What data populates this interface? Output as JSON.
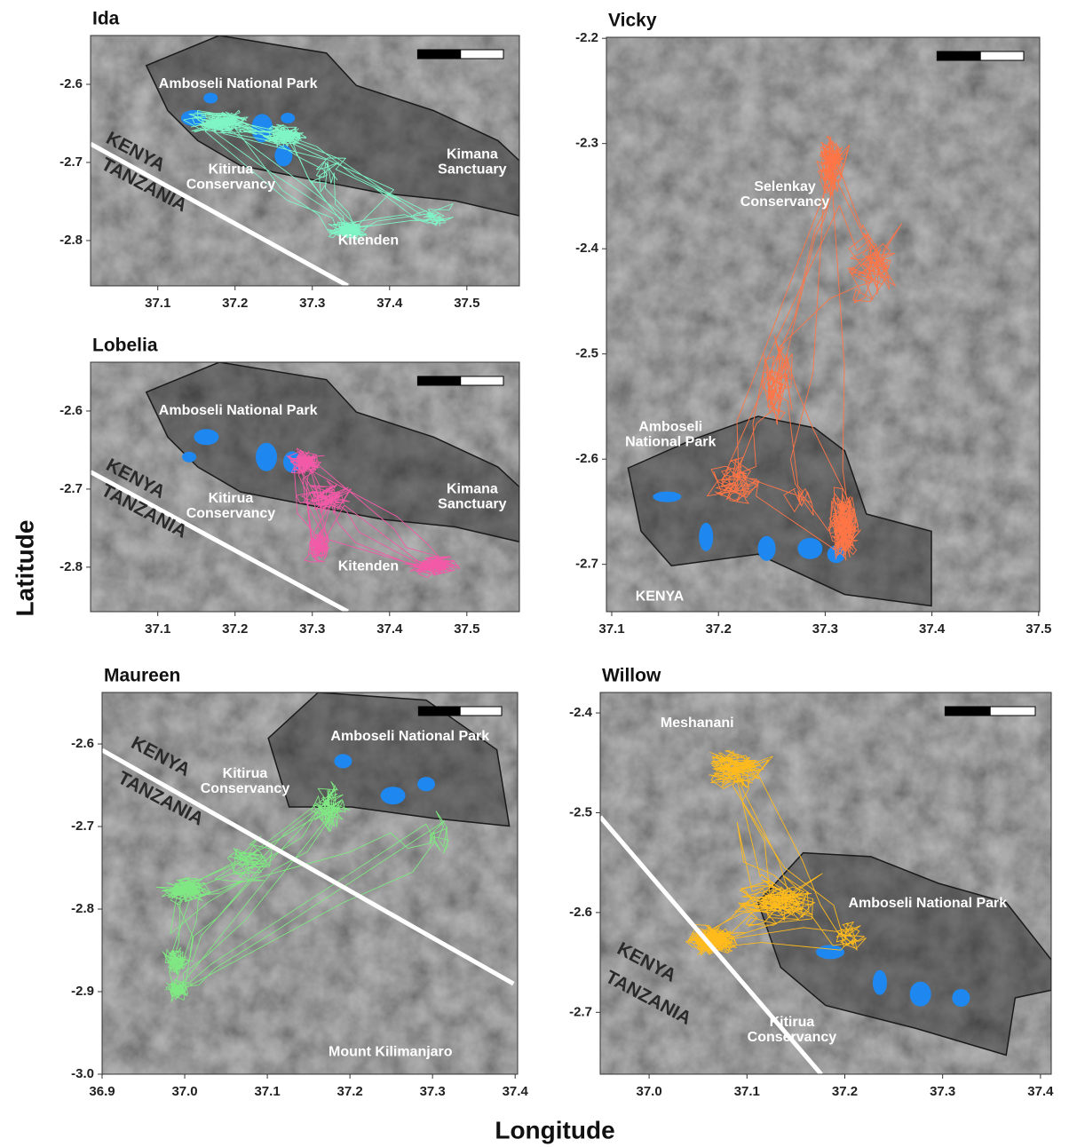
{
  "x_label": "Longitude",
  "y_label": "Latitude",
  "chart_data": [
    {
      "type": "map",
      "title": "Ida",
      "color": "#7ff5c6",
      "xlim": [
        37.013,
        37.568
      ],
      "ylim": [
        -2.858,
        -2.5375
      ],
      "xticks": [
        37.1,
        37.2,
        37.3,
        37.4,
        37.5
      ],
      "yticks": [
        -2.8,
        -2.7,
        -2.6
      ],
      "labels": [
        [
          "Amboseli National Park"
        ],
        [
          "Kitirua",
          "Conservancy"
        ],
        [
          "Kimana",
          "Sanctuary"
        ],
        [
          "Kitenden"
        ],
        [
          "KENYA"
        ],
        [
          "TANZANIA"
        ]
      ]
    },
    {
      "type": "map",
      "title": "Lobelia",
      "color": "#f25aa8",
      "xlim": [
        37.013,
        37.568
      ],
      "ylim": [
        -2.857,
        -2.5375
      ],
      "xticks": [
        37.1,
        37.2,
        37.3,
        37.4,
        37.5
      ],
      "yticks": [
        -2.8,
        -2.7,
        -2.6
      ],
      "labels": [
        [
          "Amboseli National Park"
        ],
        [
          "Kitirua",
          "Conservancy"
        ],
        [
          "Kimana",
          "Sanctuary"
        ],
        [
          "Kitenden"
        ],
        [
          "KENYA"
        ],
        [
          "TANZANIA"
        ]
      ]
    },
    {
      "type": "map",
      "title": "Vicky",
      "color": "#ff7546",
      "xlim": [
        37.095,
        37.501
      ],
      "ylim": [
        -2.745,
        -2.199
      ],
      "xticks": [
        37.1,
        37.2,
        37.3,
        37.4,
        37.5
      ],
      "yticks": [
        -2.7,
        -2.6,
        -2.5,
        -2.4,
        -2.3,
        -2.2
      ],
      "labels": [
        [
          "Selenkay",
          "Conservancy"
        ],
        [
          "Amboseli",
          "National Park"
        ],
        [
          "KENYA"
        ]
      ]
    },
    {
      "type": "map",
      "title": "Maureen",
      "color": "#7fe882",
      "xlim": [
        36.9,
        37.403
      ],
      "ylim": [
        -3.0,
        -2.5376
      ],
      "xticks": [
        36.9,
        {
          "value": 37,
          "label": "37.0"
        },
        37.1,
        37.2,
        37.3,
        37.4
      ],
      "yticks": [
        {
          "value": -3,
          "label": "-3.0"
        },
        -2.9,
        -2.8,
        -2.7,
        -2.6
      ],
      "labels": [
        [
          "Amboseli National Park"
        ],
        [
          "Kitirua",
          "Conservancy"
        ],
        [
          "Mount Kilimanjaro"
        ],
        [
          "KENYA"
        ],
        [
          "TANZANIA"
        ]
      ]
    },
    {
      "type": "map",
      "title": "Willow",
      "color": "#ffbb1c",
      "xlim": [
        36.95,
        37.411
      ],
      "ylim": [
        -2.762,
        -2.3795
      ],
      "xticks": [
        {
          "value": 37,
          "label": "37.0"
        },
        37.1,
        37.2,
        37.3,
        37.4
      ],
      "yticks": [
        -2.7,
        -2.6,
        -2.5,
        -2.4
      ],
      "labels": [
        [
          "Meshanani"
        ],
        [
          "Amboseli National Park"
        ],
        [
          "Kitirua",
          "Conservancy"
        ],
        [
          "KENYA"
        ],
        [
          "TANZANIA"
        ]
      ]
    }
  ]
}
